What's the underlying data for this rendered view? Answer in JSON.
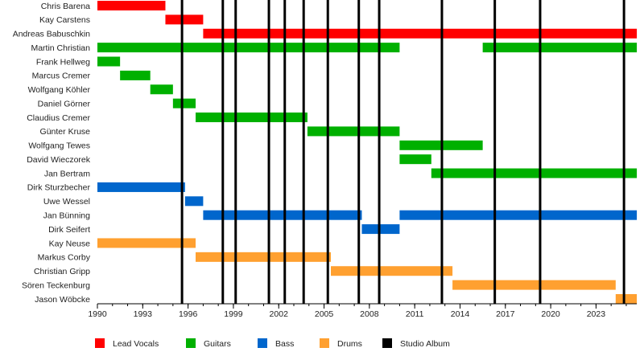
{
  "chart_data": {
    "type": "timeline",
    "xlim": [
      1990,
      2025.7
    ],
    "x_ticks": [
      1990,
      1993,
      1996,
      1999,
      2002,
      2005,
      2008,
      2011,
      2014,
      2017,
      2020,
      2023
    ],
    "roles": [
      {
        "name": "Lead Vocals",
        "color": "#ff0000"
      },
      {
        "name": "Guitars",
        "color": "#00b000"
      },
      {
        "name": "Bass",
        "color": "#0066cc"
      },
      {
        "name": "Drums",
        "color": "#ffa030"
      },
      {
        "name": "Studio Album",
        "color": "#000000"
      }
    ],
    "members": [
      {
        "name": "Chris Barena",
        "role": 0,
        "periods": [
          [
            1990,
            1994.5
          ]
        ]
      },
      {
        "name": "Kay Carstens",
        "role": 0,
        "periods": [
          [
            1994.5,
            1997
          ]
        ]
      },
      {
        "name": "Andreas Babuschkin",
        "role": 0,
        "periods": [
          [
            1997,
            2025.7
          ]
        ]
      },
      {
        "name": "Martin Christian",
        "role": 1,
        "periods": [
          [
            1990,
            2010
          ],
          [
            2015.5,
            2025.7
          ]
        ]
      },
      {
        "name": "Frank Hellweg",
        "role": 1,
        "periods": [
          [
            1990,
            1991.5
          ]
        ]
      },
      {
        "name": "Marcus Cremer",
        "role": 1,
        "periods": [
          [
            1991.5,
            1993.5
          ]
        ]
      },
      {
        "name": "Wolfgang Köhler",
        "role": 1,
        "periods": [
          [
            1993.5,
            1995
          ]
        ]
      },
      {
        "name": "Daniel Görner",
        "role": 1,
        "periods": [
          [
            1995,
            1996.5
          ]
        ]
      },
      {
        "name": "Claudius Cremer",
        "role": 1,
        "periods": [
          [
            1996.5,
            2003.9
          ]
        ]
      },
      {
        "name": "Günter Kruse",
        "role": 1,
        "periods": [
          [
            2003.9,
            2010
          ]
        ]
      },
      {
        "name": "Wolfgang Tewes",
        "role": 1,
        "periods": [
          [
            2010,
            2015.5
          ]
        ]
      },
      {
        "name": "David Wieczorek",
        "role": 1,
        "periods": [
          [
            2010,
            2012.1
          ]
        ]
      },
      {
        "name": "Jan Bertram",
        "role": 1,
        "periods": [
          [
            2012.1,
            2025.7
          ]
        ]
      },
      {
        "name": "Dirk Sturzbecher",
        "role": 2,
        "periods": [
          [
            1990,
            1995.8
          ]
        ]
      },
      {
        "name": "Uwe Wessel",
        "role": 2,
        "periods": [
          [
            1995.8,
            1997
          ]
        ]
      },
      {
        "name": "Jan Bünning",
        "role": 2,
        "periods": [
          [
            1997,
            2007.5
          ],
          [
            2010,
            2025.7
          ]
        ]
      },
      {
        "name": "Dirk Seifert",
        "role": 2,
        "periods": [
          [
            2007.5,
            2010
          ]
        ]
      },
      {
        "name": "Kay Neuse",
        "role": 3,
        "periods": [
          [
            1990,
            1996.5
          ]
        ]
      },
      {
        "name": "Markus Corby",
        "role": 3,
        "periods": [
          [
            1996.5,
            2005.45
          ]
        ]
      },
      {
        "name": "Christian Gripp",
        "role": 3,
        "periods": [
          [
            2005.45,
            2013.5
          ]
        ]
      },
      {
        "name": "Sören Teckenburg",
        "role": 3,
        "periods": [
          [
            2013.5,
            2024.3
          ]
        ]
      },
      {
        "name": "Jason Wöbcke",
        "role": 3,
        "periods": [
          [
            2024.3,
            2025.7
          ]
        ]
      }
    ],
    "studio_albums": [
      1995.6,
      1998.3,
      1999.15,
      2001.35,
      2002.4,
      2003.65,
      2005.25,
      2007.3,
      2008.65,
      2012.8,
      2016.3,
      2019.3,
      2024.85
    ]
  }
}
